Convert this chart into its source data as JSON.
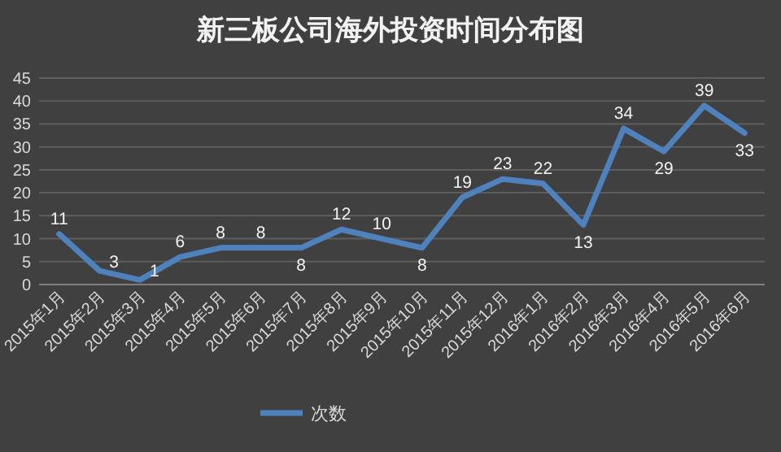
{
  "chart_data": {
    "type": "line",
    "title": "新三板公司海外投资时间分布图",
    "categories": [
      "2015年1月",
      "2015年2月",
      "2015年3月",
      "2015年4月",
      "2015年5月",
      "2015年6月",
      "2015年7月",
      "2015年8月",
      "2015年9月",
      "2015年10月",
      "2015年11月",
      "2015年12月",
      "2016年1月",
      "2016年2月",
      "2016年3月",
      "2016年4月",
      "2016年5月",
      "2016年6月"
    ],
    "series": [
      {
        "name": "次数",
        "color": "#4f81bd",
        "values": [
          11,
          3,
          1,
          6,
          8,
          8,
          8,
          12,
          10,
          8,
          19,
          23,
          22,
          13,
          34,
          29,
          39,
          33
        ]
      }
    ],
    "ylim": [
      0,
      45
    ],
    "yticks": [
      0,
      5,
      10,
      15,
      20,
      25,
      30,
      35,
      40,
      45
    ],
    "grid": "y",
    "legend": "bottom",
    "data_labels": true,
    "marker": "none",
    "line_style": "solid"
  }
}
